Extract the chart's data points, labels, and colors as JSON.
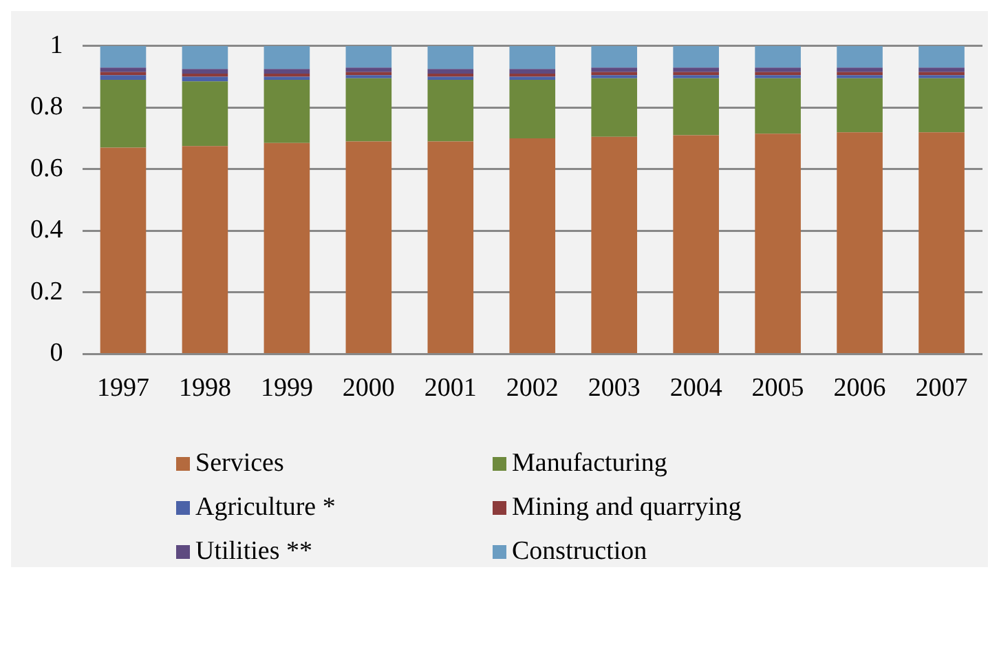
{
  "chart_data": {
    "type": "bar",
    "stacked": true,
    "categories": [
      "1997",
      "1998",
      "1999",
      "2000",
      "2001",
      "2002",
      "2003",
      "2004",
      "2005",
      "2006",
      "2007"
    ],
    "series": [
      {
        "name": "Services",
        "color": "#b46a3e",
        "values": [
          0.67,
          0.675,
          0.685,
          0.69,
          0.69,
          0.7,
          0.705,
          0.71,
          0.715,
          0.72,
          0.72
        ]
      },
      {
        "name": "Manufacturing",
        "color": "#6e8a3d",
        "values": [
          0.22,
          0.21,
          0.205,
          0.205,
          0.2,
          0.19,
          0.19,
          0.185,
          0.18,
          0.175,
          0.175
        ]
      },
      {
        "name": "Agriculture *",
        "color": "#4b62a8",
        "values": [
          0.015,
          0.015,
          0.01,
          0.01,
          0.01,
          0.01,
          0.01,
          0.01,
          0.01,
          0.01,
          0.01
        ]
      },
      {
        "name": "Mining and quarrying",
        "color": "#8c3b3b",
        "values": [
          0.01,
          0.01,
          0.01,
          0.01,
          0.01,
          0.01,
          0.01,
          0.01,
          0.01,
          0.01,
          0.01
        ]
      },
      {
        "name": "Utilities **",
        "color": "#5e4a80",
        "values": [
          0.015,
          0.015,
          0.015,
          0.015,
          0.015,
          0.015,
          0.015,
          0.015,
          0.015,
          0.015,
          0.015
        ]
      },
      {
        "name": "Construction",
        "color": "#6b9dc2",
        "values": [
          0.07,
          0.075,
          0.075,
          0.07,
          0.075,
          0.075,
          0.07,
          0.07,
          0.07,
          0.07,
          0.07
        ]
      }
    ],
    "ylim": [
      0,
      1
    ],
    "yticks": [
      0,
      {
        "value": 0.2,
        "label": "0.2"
      },
      {
        "value": 0.4,
        "label": "0.4"
      },
      {
        "value": 0.6,
        "label": "0.6"
      },
      {
        "value": 0.8,
        "label": "0.8"
      },
      1
    ],
    "grid": "y",
    "legend": "bottom"
  }
}
